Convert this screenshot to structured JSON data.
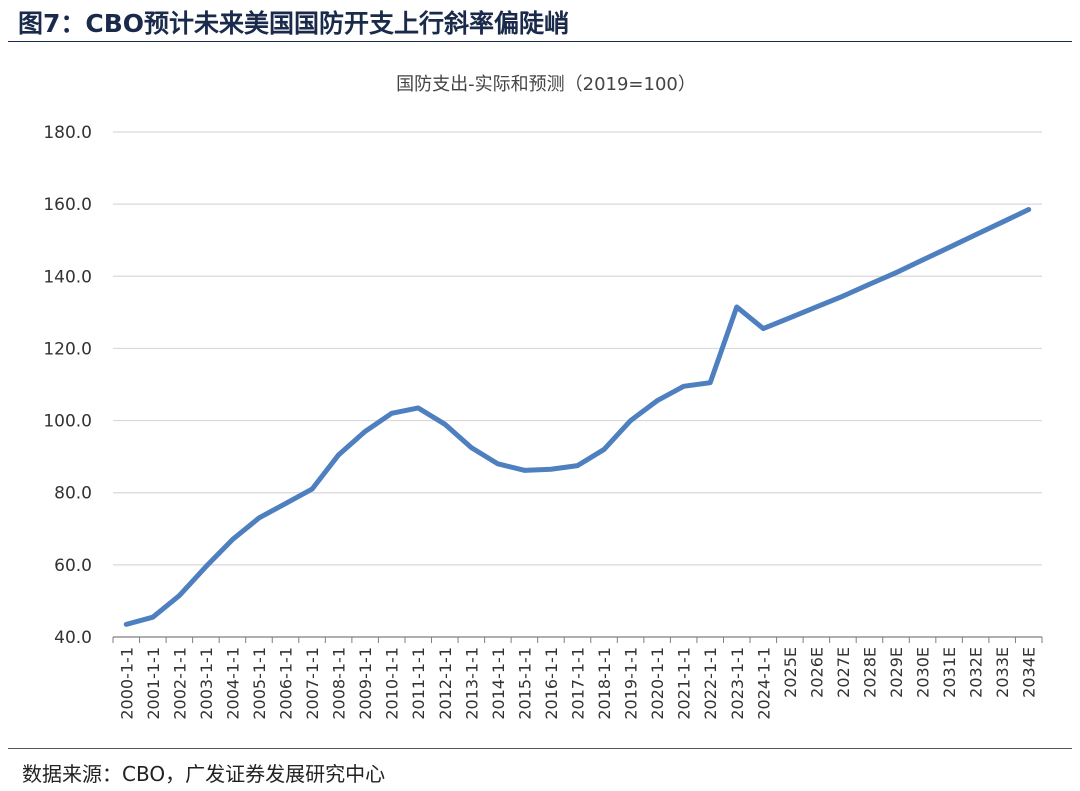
{
  "figure": {
    "label": "图7：CBO预计未来美国国防开支上行斜率偏陡峭",
    "source": "数据来源：CBO，广发证券发展研究中心"
  },
  "colors": {
    "line": "#4e7fbf",
    "grid": "#d9d9d9",
    "axis": "#7f7f7f"
  },
  "chart_data": {
    "type": "line",
    "title": "国防支出-实际和预测（2019=100）",
    "xlabel": "",
    "ylabel": "",
    "ylim": [
      40,
      180
    ],
    "yticks": [
      "40.0",
      "60.0",
      "80.0",
      "100.0",
      "120.0",
      "140.0",
      "160.0",
      "180.0"
    ],
    "grid": true,
    "legend": "none",
    "categories": [
      "2000-1-1",
      "2001-1-1",
      "2002-1-1",
      "2003-1-1",
      "2004-1-1",
      "2005-1-1",
      "2006-1-1",
      "2007-1-1",
      "2008-1-1",
      "2009-1-1",
      "2010-1-1",
      "2011-1-1",
      "2012-1-1",
      "2013-1-1",
      "2014-1-1",
      "2015-1-1",
      "2016-1-1",
      "2017-1-1",
      "2018-1-1",
      "2019-1-1",
      "2020-1-1",
      "2021-1-1",
      "2022-1-1",
      "2023-1-1",
      "2024-1-1",
      "2025E",
      "2026E",
      "2027E",
      "2028E",
      "2029E",
      "2030E",
      "2031E",
      "2032E",
      "2033E",
      "2034E"
    ],
    "series": [
      {
        "values": [
          43.5,
          45.5,
          51.5,
          59.5,
          67,
          73,
          77,
          81,
          90.5,
          97,
          102,
          103.5,
          99,
          92.5,
          88,
          86.2,
          86.5,
          87.5,
          92,
          100,
          105.5,
          109.5,
          110.5,
          131.5,
          125.5,
          128.5,
          131.5,
          134.5,
          137.8,
          141,
          144.5,
          148,
          151.5,
          155,
          158.5
        ]
      }
    ]
  }
}
